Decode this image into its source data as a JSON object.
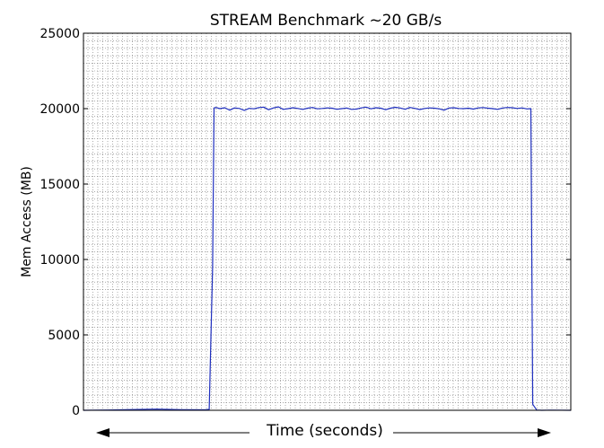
{
  "chart_data": {
    "type": "line",
    "title": "STREAM Benchmark ~20 GB/s",
    "ylabel": "Mem Access (MB)",
    "xlabel": "Time (seconds)",
    "ylim": [
      0,
      25000
    ],
    "xlim": [
      0,
      1000
    ],
    "yticks": [
      0,
      5000,
      10000,
      15000,
      20000,
      25000
    ],
    "grid": true,
    "colors": {
      "line": "#1f2fbf",
      "grid": "#777777"
    },
    "series": [
      {
        "values_note": "",
        "x": [
          0,
          50,
          100,
          150,
          200,
          250,
          258,
          265,
          268,
          272,
          280,
          290,
          300,
          310,
          320,
          330,
          340,
          350,
          360,
          370,
          380,
          390,
          400,
          410,
          420,
          430,
          440,
          450,
          460,
          470,
          480,
          490,
          500,
          510,
          520,
          530,
          540,
          550,
          560,
          570,
          580,
          590,
          600,
          610,
          620,
          630,
          640,
          650,
          660,
          670,
          680,
          690,
          700,
          710,
          720,
          730,
          740,
          750,
          760,
          770,
          780,
          790,
          800,
          810,
          820,
          830,
          840,
          850,
          860,
          870,
          880,
          890,
          900,
          910,
          918,
          922,
          930,
          940,
          960,
          1000
        ],
        "values": [
          0,
          20,
          50,
          80,
          40,
          30,
          60,
          9500,
          20050,
          20080,
          20000,
          20060,
          19900,
          20050,
          20010,
          19880,
          20020,
          19990,
          20070,
          20100,
          19930,
          20050,
          20120,
          19950,
          20000,
          20060,
          20010,
          19950,
          20030,
          20080,
          19990,
          20010,
          20050,
          20030,
          19960,
          20000,
          20040,
          19950,
          19970,
          20050,
          20100,
          19990,
          20060,
          20030,
          19930,
          20030,
          20090,
          20040,
          19960,
          20080,
          20020,
          19940,
          20010,
          20050,
          20030,
          19990,
          19900,
          20040,
          20060,
          20010,
          20000,
          20030,
          19970,
          20050,
          20070,
          20030,
          20000,
          19950,
          20040,
          20080,
          20060,
          20010,
          20050,
          19980,
          20000,
          400,
          20,
          0,
          10,
          0
        ]
      }
    ]
  }
}
